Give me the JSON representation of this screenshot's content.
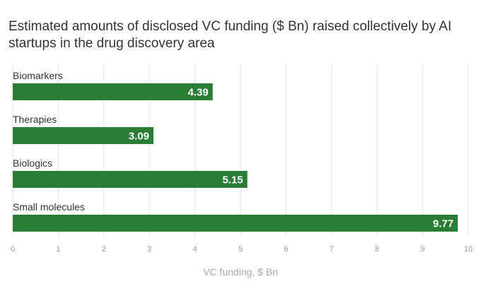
{
  "title": "Estimated amounts of disclosed VC funding ($ Bn) raised collectively by AI startups in the drug discovery area",
  "colors": {
    "bar": "#2a7d35",
    "grid": "#e6e6e6"
  },
  "chart_data": {
    "type": "bar",
    "orientation": "horizontal",
    "categories": [
      "Biomarkers",
      "Therapies",
      "Biologics",
      "Small molecules"
    ],
    "values": [
      4.39,
      3.09,
      5.15,
      9.77
    ],
    "value_labels": [
      "4.39",
      "3.09",
      "5.15",
      "9.77"
    ],
    "title": "Estimated amounts of disclosed VC funding ($ Bn) raised collectively by AI startups in the drug discovery area",
    "xlabel": "VC funding, $ Bn",
    "ylabel": "",
    "xlim": [
      0,
      10
    ],
    "xticks": [
      "0",
      "1",
      "2",
      "3",
      "4",
      "5",
      "6",
      "7",
      "8",
      "9",
      "10"
    ],
    "grid": true,
    "legend": "none"
  }
}
